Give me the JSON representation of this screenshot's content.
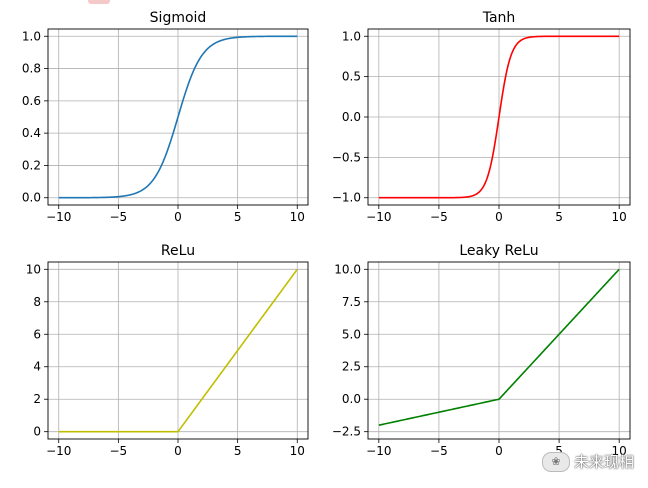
{
  "watermark": {
    "text": "未来现相",
    "icon": "wechat-bubble-icon"
  },
  "chart_data": [
    {
      "type": "line",
      "title": "Sigmoid",
      "function": "sigmoid",
      "color": "#1f77b4",
      "xlim": [
        -10,
        10
      ],
      "ylim": [
        0,
        1
      ],
      "xticks": [
        -10,
        -5,
        0,
        5,
        10
      ],
      "xtick_labels": [
        "−10",
        "−5",
        "0",
        "5",
        "10"
      ],
      "yticks": [
        0,
        0.2,
        0.4,
        0.6,
        0.8,
        1
      ],
      "ytick_labels": [
        "0.0",
        "0.2",
        "0.4",
        "0.6",
        "0.8",
        "1.0"
      ],
      "grid": true,
      "series": [
        {
          "x": [
            -10,
            -8,
            -6,
            -4,
            -3,
            -2,
            -1,
            0,
            1,
            2,
            3,
            4,
            6,
            8,
            10
          ],
          "y": [
            5e-05,
            0.0003,
            0.0025,
            0.018,
            0.047,
            0.119,
            0.269,
            0.5,
            0.731,
            0.881,
            0.953,
            0.982,
            0.9975,
            0.9997,
            0.99995
          ]
        }
      ]
    },
    {
      "type": "line",
      "title": "Tanh",
      "function": "tanh",
      "color": "#ff0000",
      "xlim": [
        -10,
        10
      ],
      "ylim": [
        -1,
        1
      ],
      "xticks": [
        -10,
        -5,
        0,
        5,
        10
      ],
      "xtick_labels": [
        "−10",
        "−5",
        "0",
        "5",
        "10"
      ],
      "yticks": [
        -1,
        -0.5,
        0,
        0.5,
        1
      ],
      "ytick_labels": [
        "−1.0",
        "−0.5",
        "0.0",
        "0.5",
        "1.0"
      ],
      "grid": true,
      "series": [
        {
          "x": [
            -10,
            -4,
            -3,
            -2,
            -1,
            -0.5,
            0,
            0.5,
            1,
            2,
            3,
            4,
            10
          ],
          "y": [
            -1,
            -0.999,
            -0.995,
            -0.964,
            -0.762,
            -0.462,
            0,
            0.462,
            0.762,
            0.964,
            0.995,
            0.999,
            1
          ]
        }
      ]
    },
    {
      "type": "line",
      "title": "ReLu",
      "function": "relu",
      "color": "#bfbf00",
      "xlim": [
        -10,
        10
      ],
      "ylim": [
        0,
        10
      ],
      "xticks": [
        -10,
        -5,
        0,
        5,
        10
      ],
      "xtick_labels": [
        "−10",
        "−5",
        "0",
        "5",
        "10"
      ],
      "yticks": [
        0,
        2,
        4,
        6,
        8,
        10
      ],
      "ytick_labels": [
        "0",
        "2",
        "4",
        "6",
        "8",
        "10"
      ],
      "grid": true,
      "series": [
        {
          "x": [
            -10,
            -0.2,
            0,
            0.2,
            10
          ],
          "y": [
            0,
            0,
            0.05,
            0.2,
            10
          ]
        }
      ]
    },
    {
      "type": "line",
      "title": "Leaky ReLu",
      "function": "leaky_relu",
      "color": "#008000",
      "xlim": [
        -10,
        10
      ],
      "ylim": [
        -2.5,
        10
      ],
      "xticks": [
        -10,
        -5,
        0,
        5,
        10
      ],
      "xtick_labels": [
        "−10",
        "−5",
        "0",
        "5",
        "10"
      ],
      "yticks": [
        -2.5,
        0,
        2.5,
        5,
        7.5,
        10
      ],
      "ytick_labels": [
        "−2.5",
        "0.0",
        "2.5",
        "5.0",
        "7.5",
        "10.0"
      ],
      "grid": true,
      "series": [
        {
          "x": [
            -10,
            -0.2,
            0,
            0.2,
            10
          ],
          "y": [
            -2,
            -0.04,
            0,
            0.2,
            10
          ]
        }
      ]
    }
  ]
}
